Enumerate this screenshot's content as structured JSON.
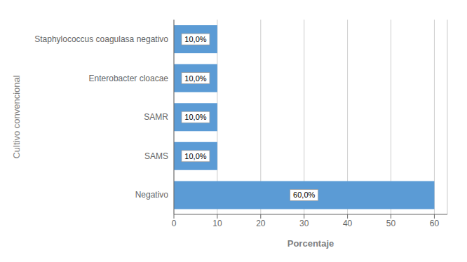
{
  "chart_data": {
    "type": "bar",
    "orientation": "horizontal",
    "categories": [
      "Negativo",
      "SAMS",
      "SAMR",
      "Enterobacter cloacae",
      "Staphylococcus coagulasa negativo"
    ],
    "values": [
      60.0,
      10.0,
      10.0,
      10.0,
      10.0
    ],
    "value_labels": [
      "60,0%",
      "10,0%",
      "10,0%",
      "10,0%",
      "10,0%"
    ],
    "data_labels": true,
    "color": "#5B9BD5",
    "xlabel": "Porcentaje",
    "ylabel": "Cultivo convencional",
    "xlim": [
      0,
      63
    ],
    "xticks": [
      0,
      10,
      20,
      30,
      40,
      50,
      60
    ],
    "grid": true
  }
}
